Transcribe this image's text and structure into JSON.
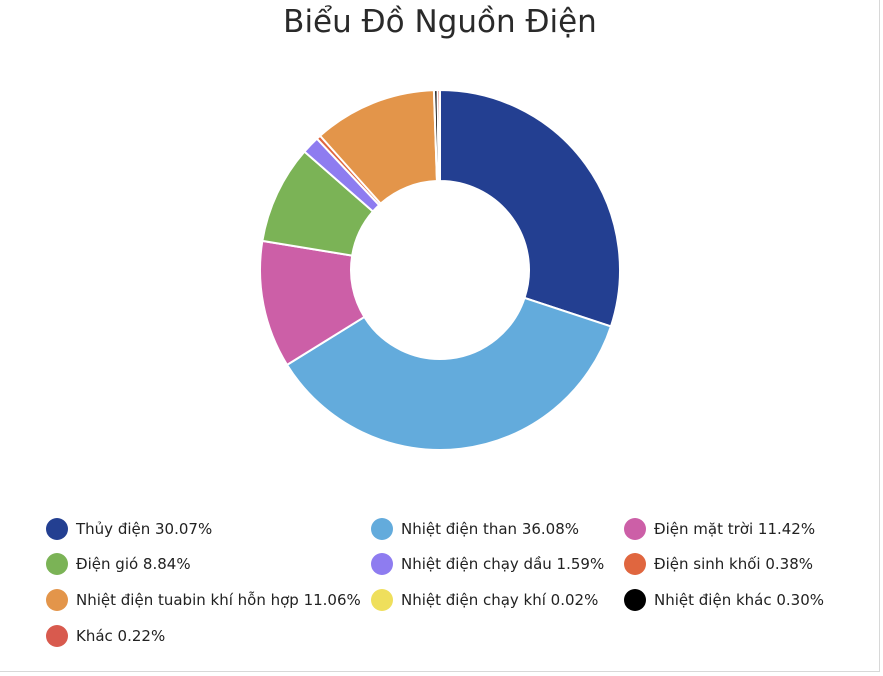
{
  "chart_data": {
    "type": "donut",
    "title": "Biểu Đồ Nguồn Điện",
    "slices": [
      {
        "label": "Thủy điện",
        "value": 30.07,
        "display": "30.07%",
        "color": "#233f91"
      },
      {
        "label": "Nhiệt điện than",
        "value": 36.08,
        "display": "36.08%",
        "color": "#63abdc"
      },
      {
        "label": "Điện mặt trời",
        "value": 11.42,
        "display": "11.42%",
        "color": "#cc5fa7"
      },
      {
        "label": "Điện gió",
        "value": 8.84,
        "display": "8.84%",
        "color": "#7bb356"
      },
      {
        "label": "Nhiệt điện chạy dầu",
        "value": 1.59,
        "display": "1.59%",
        "color": "#8e7cf0"
      },
      {
        "label": "Điện sinh khối",
        "value": 0.38,
        "display": "0.38%",
        "color": "#e0663f"
      },
      {
        "label": "Nhiệt điện tuabin khí hỗn hợp",
        "value": 11.06,
        "display": "11.06%",
        "color": "#e3954a"
      },
      {
        "label": "Nhiệt điện chạy khí",
        "value": 0.02,
        "display": "0.02%",
        "color": "#efdf5c"
      },
      {
        "label": "Nhiệt điện khác",
        "value": 0.3,
        "display": "0.30%",
        "color": "#000000"
      },
      {
        "label": "Khác",
        "value": 0.22,
        "display": "0.22%",
        "color": "#d85a4e"
      }
    ],
    "legend_position": "bottom"
  }
}
